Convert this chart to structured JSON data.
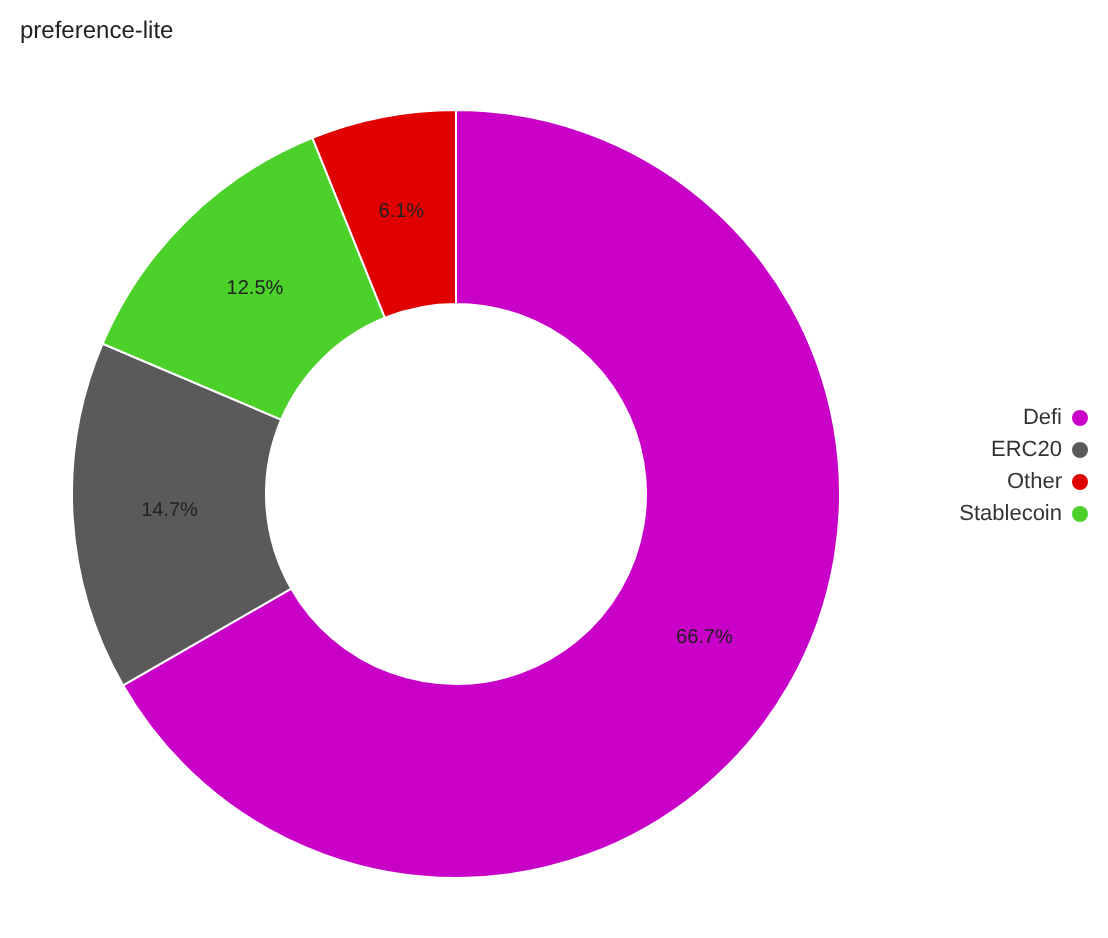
{
  "chart_data": {
    "type": "donut",
    "title": "preference-lite",
    "categories": [
      "Defi",
      "ERC20",
      "Stablecoin",
      "Other"
    ],
    "values": [
      66.7,
      14.7,
      12.5,
      6.1
    ],
    "colors": [
      "#c800c8",
      "#5a5a5a",
      "#4cd12a",
      "#e00000"
    ],
    "value_labels": [
      "66.7%",
      "14.7%",
      "12.5%",
      "6.1%"
    ],
    "legend": "right"
  }
}
